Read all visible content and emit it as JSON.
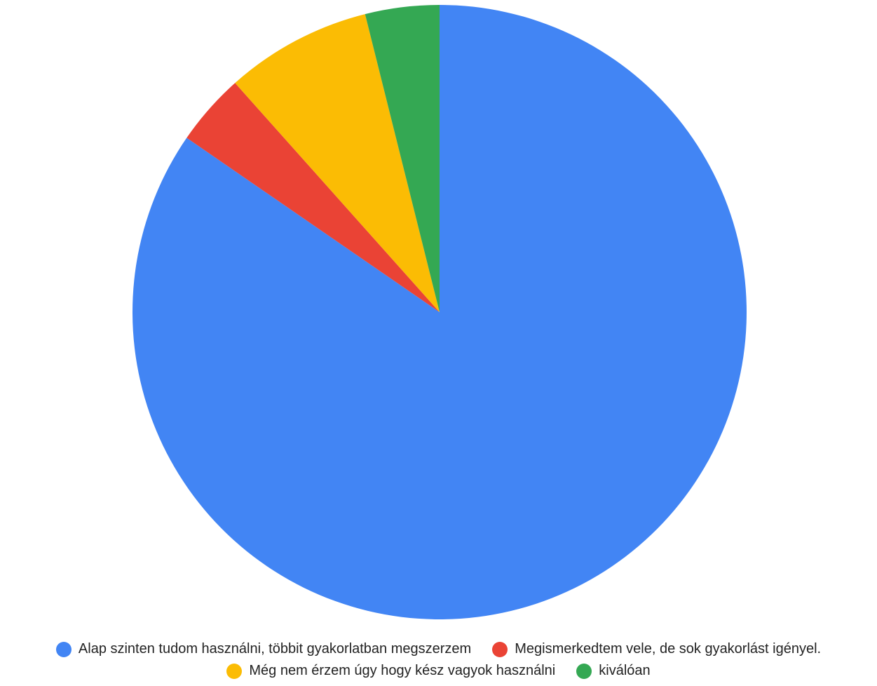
{
  "chart_data": {
    "type": "pie",
    "title": "",
    "start_angle_deg": 0,
    "direction": "clockwise",
    "legend_position": "bottom",
    "series": [
      {
        "labels": [
          "Alap szinten tudom használni, többit gyakorlatban megszerzem",
          "Megismerkedtem vele, de sok gyakorlást igényel.",
          "Még nem érzem úgy hogy kész vagyok használni",
          "kiválóan"
        ],
        "values": [
          84.6,
          3.8,
          7.7,
          3.9
        ],
        "colors": [
          "#4285F4",
          "#EA4335",
          "#FBBC04",
          "#34A853"
        ]
      }
    ]
  }
}
